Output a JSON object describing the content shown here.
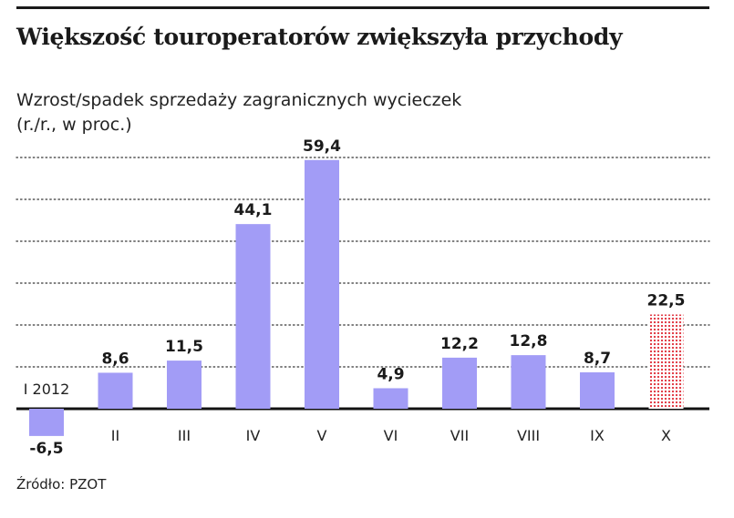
{
  "title": "Większość touroperatorów zwiększyła przychody",
  "subtitle_line1": "Wzrost/spadek sprzedaży zagranicznych wycieczek",
  "subtitle_line2": "(r./r., w proc.)",
  "source": "Źródło: PZOT",
  "colors": {
    "bar": "#a29cf6",
    "forecast_dots": "#e0323c",
    "gridline": "#555555",
    "baseline": "#111111"
  },
  "chart_data": {
    "type": "bar",
    "categories": [
      "I 2012",
      "II",
      "III",
      "IV",
      "V",
      "VI",
      "VII",
      "VIII",
      "IX",
      "X"
    ],
    "values": [
      -6.5,
      8.6,
      11.5,
      44.1,
      59.4,
      4.9,
      12.2,
      12.8,
      8.7,
      22.5
    ],
    "value_labels": [
      "-6,5",
      "8,6",
      "11,5",
      "44,1",
      "59,4",
      "4,9",
      "12,2",
      "12,8",
      "8,7",
      "22,5"
    ],
    "highlighted_category": "X",
    "title": "Większość touroperatorów zwiększyła przychody",
    "xlabel": "",
    "ylabel": "",
    "ylim": [
      -10,
      60
    ],
    "gridlines_y": [
      10,
      20,
      30,
      40,
      50,
      60
    ],
    "grid": true
  }
}
